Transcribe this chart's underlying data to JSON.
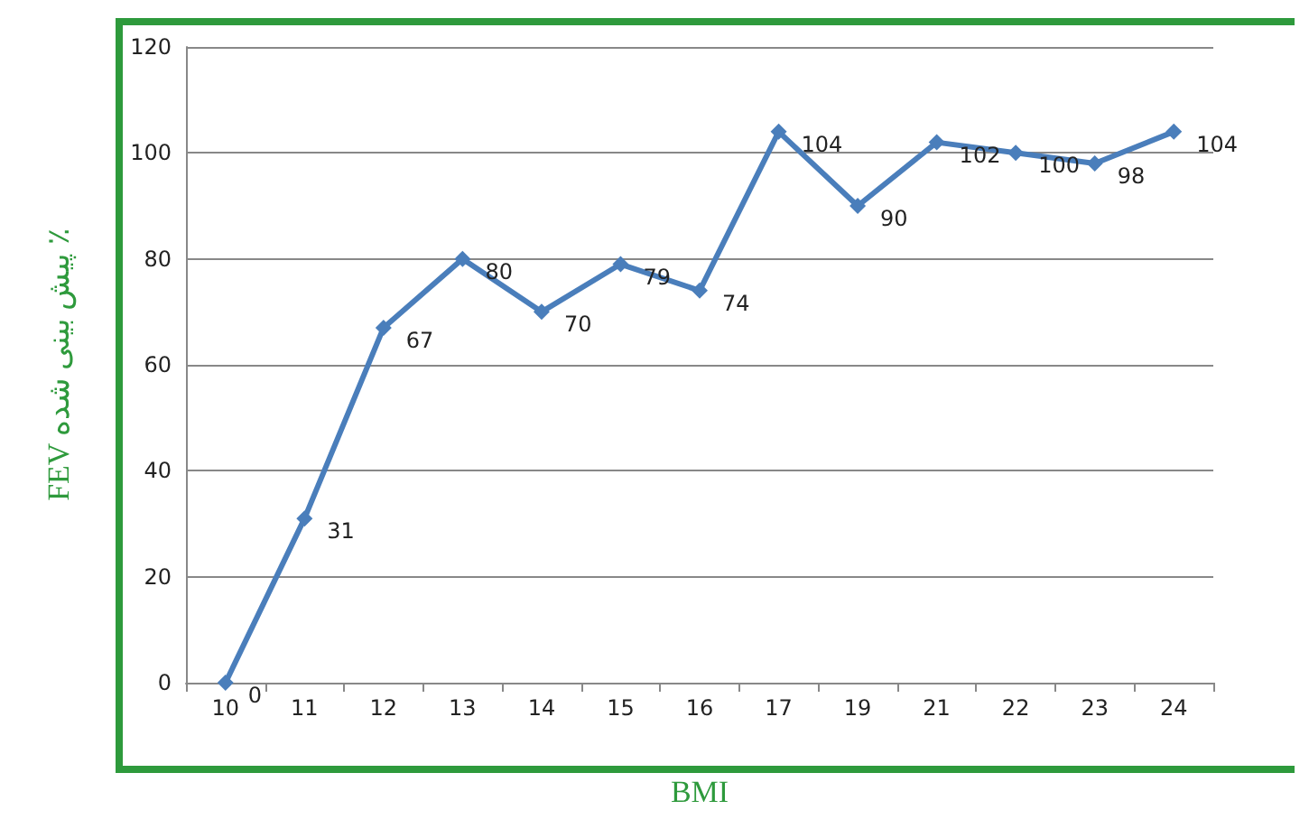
{
  "chart_data": {
    "type": "line",
    "xlabel": "BMI",
    "ylabel": "FEV پیش بینی شده ٪",
    "categories": [
      "10",
      "11",
      "12",
      "13",
      "14",
      "15",
      "16",
      "17",
      "19",
      "21",
      "22",
      "23",
      "24"
    ],
    "series": [
      {
        "color": "#4a7ebb",
        "values": [
          0,
          31,
          67,
          80,
          70,
          79,
          74,
          104,
          90,
          102,
          100,
          98,
          104
        ]
      }
    ],
    "ylim": [
      0,
      120
    ],
    "yticks": [
      0,
      20,
      40,
      60,
      80,
      100,
      120
    ],
    "grid": "y",
    "marker": "diamond",
    "data_labels": true
  }
}
